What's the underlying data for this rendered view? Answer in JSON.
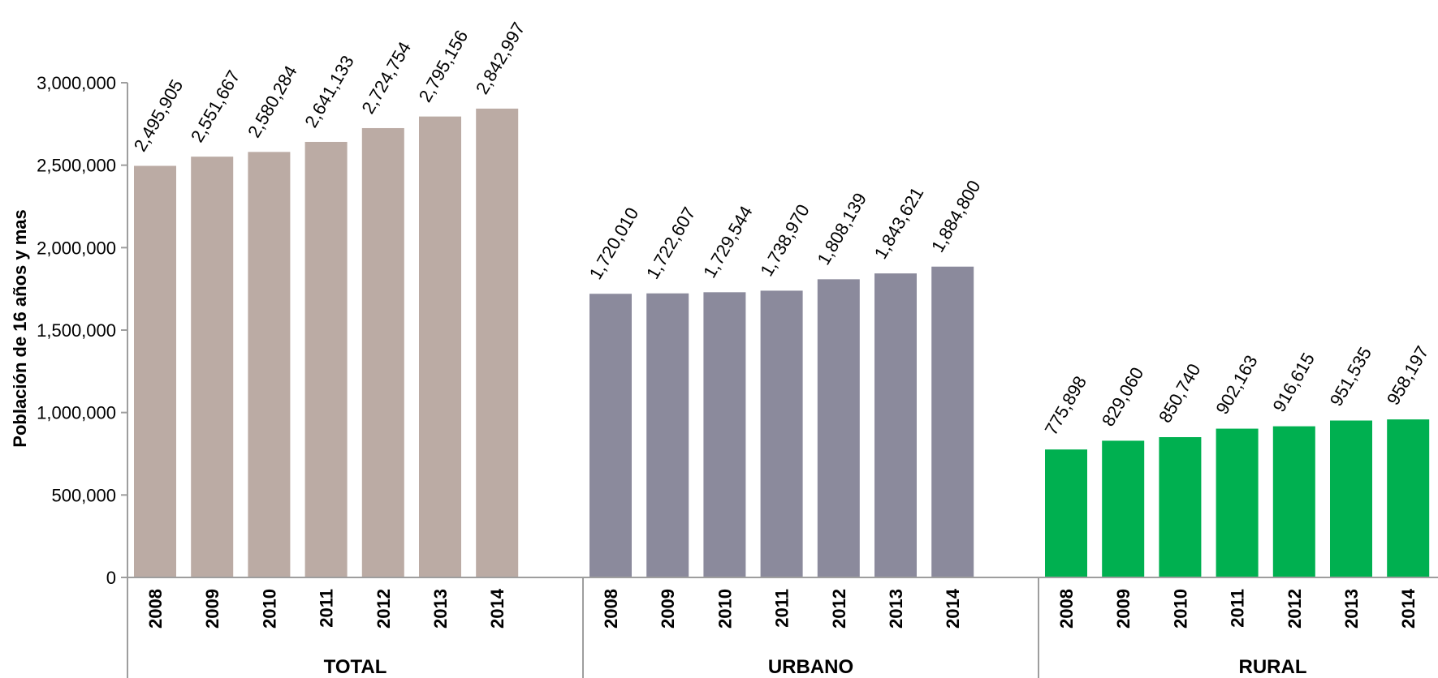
{
  "chart_data": {
    "type": "bar",
    "ylabel": "Población de 16 años y mas",
    "ylim": [
      0,
      3000000
    ],
    "yticks": [
      0,
      500000,
      1000000,
      1500000,
      2000000,
      2500000,
      3000000
    ],
    "ytick_labels": [
      "0",
      "500,000",
      "1,000,000",
      "1,500,000",
      "2,000,000",
      "2,500,000",
      "3,000,000"
    ],
    "grid": false,
    "categories": [
      "2008",
      "2009",
      "2010",
      "2011",
      "2012",
      "2013",
      "2014"
    ],
    "groups": [
      {
        "name": "TOTAL",
        "color": "#bbaba4",
        "values": [
          2495905,
          2551667,
          2580284,
          2641133,
          2724754,
          2795156,
          2842997
        ],
        "labels": [
          "2,495,905",
          "2,551,667",
          "2,580,284",
          "2,641,133",
          "2,724,754",
          "2,795,156",
          "2,842,997"
        ]
      },
      {
        "name": "URBANO",
        "color": "#8b8a9c",
        "values": [
          1720010,
          1722607,
          1729544,
          1738970,
          1808139,
          1843621,
          1884800
        ],
        "labels": [
          "1,720,010",
          "1,722,607",
          "1,729,544",
          "1,738,970",
          "1,808,139",
          "1,843,621",
          "1,884,800"
        ]
      },
      {
        "name": "RURAL",
        "color": "#00b050",
        "values": [
          775898,
          829060,
          850740,
          902163,
          916615,
          951535,
          958197
        ],
        "labels": [
          "775,898",
          "829,060",
          "850,740",
          "902,163",
          "916,615",
          "951,535",
          "958,197"
        ]
      }
    ]
  }
}
